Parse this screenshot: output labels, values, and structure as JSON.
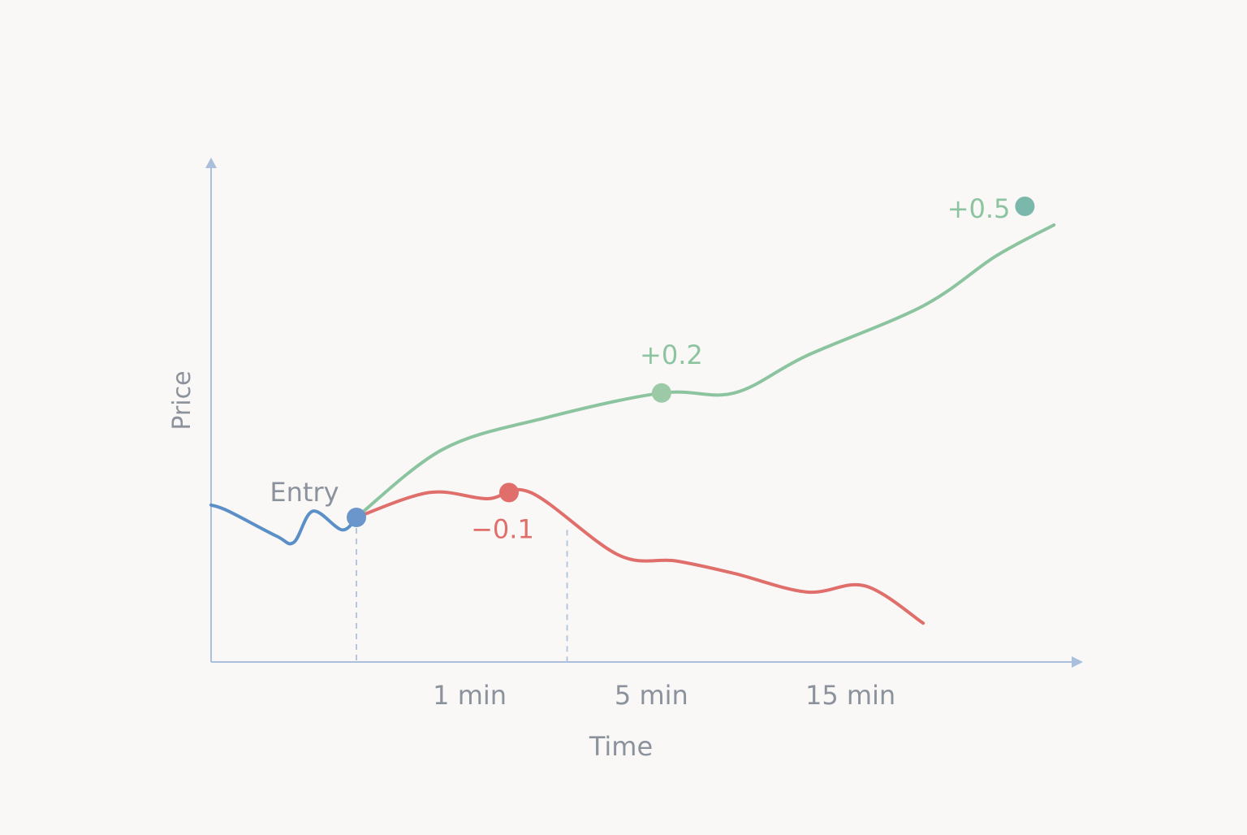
{
  "chart_data": {
    "type": "line",
    "xlabel": "Time",
    "ylabel": "Price",
    "x_ticks": [
      "1 min",
      "5 min",
      "15 min"
    ],
    "grid": false,
    "series": [
      {
        "role": "pre-entry",
        "color": "#5b8fc7",
        "points": [
          [
            0,
            0.02
          ],
          [
            0.12,
            0.01
          ],
          [
            0.45,
            -0.03
          ],
          [
            0.57,
            -0.04
          ],
          [
            0.7,
            0.01
          ],
          [
            0.9,
            -0.02
          ],
          [
            1.0,
            0.0
          ]
        ]
      },
      {
        "role": "rising-path",
        "color": "#8cc4a0",
        "points": [
          [
            1.0,
            0.0
          ],
          [
            1.6,
            0.11
          ],
          [
            2.3,
            0.16
          ],
          [
            3.1,
            0.2
          ],
          [
            3.6,
            0.2
          ],
          [
            4.1,
            0.26
          ],
          [
            4.9,
            0.34
          ],
          [
            5.4,
            0.42
          ],
          [
            5.8,
            0.47
          ]
        ]
      },
      {
        "role": "falling-path",
        "color": "#e06e6a",
        "points": [
          [
            1.0,
            0.0
          ],
          [
            1.5,
            0.04
          ],
          [
            1.9,
            0.03
          ],
          [
            2.2,
            0.04
          ],
          [
            2.8,
            -0.06
          ],
          [
            3.2,
            -0.07
          ],
          [
            3.6,
            -0.09
          ],
          [
            4.1,
            -0.12
          ],
          [
            4.5,
            -0.11
          ],
          [
            4.9,
            -0.17
          ]
        ]
      }
    ],
    "annotations": [
      {
        "label": "Entry",
        "x": 1.0,
        "y": 0.0,
        "color": "#6b96cc",
        "label_color": "#8c929c"
      },
      {
        "label": "+0.2",
        "x": 3.1,
        "y": 0.2,
        "color": "#9ccaa6",
        "label_color": "#8cc4a0"
      },
      {
        "label": "+0.5",
        "x": 5.6,
        "y": 0.5,
        "color": "#7bb8ac",
        "label_color": "#8cc4a0"
      },
      {
        "label": "−0.1",
        "x": 2.05,
        "y": 0.04,
        "color": "#e06e6a",
        "label_color": "#e06e6a"
      }
    ],
    "markers": [
      1.0,
      2.45
    ]
  }
}
